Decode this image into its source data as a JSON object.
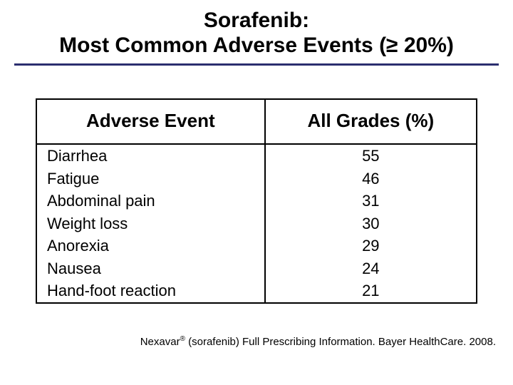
{
  "colors": {
    "slide_background": "#2b2e6f",
    "content_background": "#ffffff",
    "title_rule": "#2b2e6f",
    "text": "#000000",
    "table_border": "#000000"
  },
  "title": {
    "line1": "Sorafenib:",
    "line2": "Most Common Adverse Events (≥ 20%)",
    "fontsize": 30
  },
  "table": {
    "type": "table",
    "columns": [
      {
        "label": "Adverse Event",
        "align": "left"
      },
      {
        "label": "All Grades (%)",
        "align": "center"
      }
    ],
    "rows": [
      {
        "event": "Diarrhea",
        "value": "55"
      },
      {
        "event": "Fatigue",
        "value": "46"
      },
      {
        "event": "Abdominal pain",
        "value": "31"
      },
      {
        "event": "Weight loss",
        "value": "30"
      },
      {
        "event": "Anorexia",
        "value": "29"
      },
      {
        "event": "Nausea",
        "value": "24"
      },
      {
        "event": "Hand-foot reaction",
        "value": "21"
      }
    ],
    "header_fontsize": 26,
    "cell_fontsize": 22
  },
  "footnote": {
    "brand": "Nexavar",
    "reg": "®",
    "rest": " (sorafenib) Full Prescribing Information. Bayer HealthCare. 2008.",
    "fontsize": 15
  }
}
